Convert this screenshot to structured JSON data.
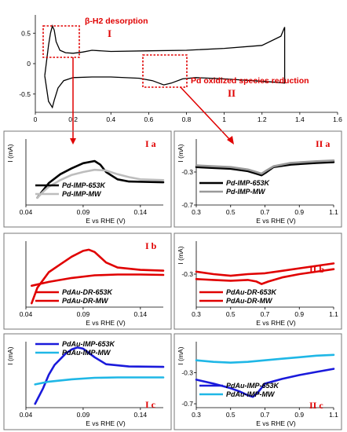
{
  "colors": {
    "accent_red": "#e00000"
  },
  "chart_data": [
    {
      "type": "line",
      "x_ticks": [
        "0",
        "0.2",
        "0.4",
        "0.6",
        "0.8",
        "1",
        "1.2",
        "1.4",
        "1.6"
      ],
      "y_ticks": [
        "-0.5",
        "0",
        "0.5"
      ],
      "xlim": [
        0,
        1.6
      ],
      "ylim": [
        -0.8,
        0.8
      ],
      "annotations": [
        {
          "text": "β-H2 desorption",
          "label": "I"
        },
        {
          "text": "Pd oxidized species reduction",
          "label": "II"
        }
      ],
      "series": [
        {
          "color": "#000000",
          "points": [
            [
              0.05,
              -0.2
            ],
            [
              0.06,
              0.05
            ],
            [
              0.07,
              0.3
            ],
            [
              0.08,
              0.5
            ],
            [
              0.09,
              0.62
            ],
            [
              0.1,
              0.55
            ],
            [
              0.11,
              0.36
            ],
            [
              0.13,
              0.22
            ],
            [
              0.16,
              0.18
            ],
            [
              0.2,
              0.17
            ],
            [
              0.25,
              0.19
            ],
            [
              0.3,
              0.22
            ],
            [
              0.4,
              0.2
            ],
            [
              0.6,
              0.21
            ],
            [
              0.8,
              0.22
            ],
            [
              1.0,
              0.25
            ],
            [
              1.2,
              0.3
            ],
            [
              1.3,
              0.45
            ],
            [
              1.32,
              0.6
            ],
            [
              1.32,
              -0.32
            ],
            [
              1.25,
              -0.3
            ],
            [
              1.0,
              -0.25
            ],
            [
              0.85,
              -0.23
            ],
            [
              0.78,
              -0.25
            ],
            [
              0.72,
              -0.32
            ],
            [
              0.68,
              -0.35
            ],
            [
              0.62,
              -0.28
            ],
            [
              0.55,
              -0.24
            ],
            [
              0.4,
              -0.22
            ],
            [
              0.3,
              -0.22
            ],
            [
              0.2,
              -0.23
            ],
            [
              0.15,
              -0.28
            ],
            [
              0.12,
              -0.4
            ],
            [
              0.1,
              -0.6
            ],
            [
              0.09,
              -0.72
            ],
            [
              0.07,
              -0.62
            ],
            [
              0.05,
              -0.2
            ]
          ]
        }
      ]
    },
    {
      "type": "line",
      "panel": "I a",
      "x_ticks": [
        "0.04",
        "0.09",
        "0.14"
      ],
      "xlabel": "E vs RHE (V)",
      "ylabel": "I (mA)",
      "xlim": [
        0.04,
        0.16
      ],
      "ylim": [
        -0.1,
        0.8
      ],
      "series": [
        {
          "name": "Pd-IMP-653K",
          "color": "#000000",
          "points": [
            [
              0.05,
              0.0
            ],
            [
              0.055,
              0.1
            ],
            [
              0.06,
              0.2
            ],
            [
              0.07,
              0.32
            ],
            [
              0.08,
              0.4
            ],
            [
              0.09,
              0.47
            ],
            [
              0.1,
              0.5
            ],
            [
              0.105,
              0.45
            ],
            [
              0.11,
              0.35
            ],
            [
              0.12,
              0.25
            ],
            [
              0.13,
              0.22
            ],
            [
              0.16,
              0.21
            ]
          ]
        },
        {
          "name": "Pd-IMP-MW",
          "color": "#bdbdbd",
          "points": [
            [
              0.05,
              0.0
            ],
            [
              0.055,
              0.08
            ],
            [
              0.06,
              0.15
            ],
            [
              0.07,
              0.24
            ],
            [
              0.08,
              0.31
            ],
            [
              0.09,
              0.35
            ],
            [
              0.1,
              0.38
            ],
            [
              0.11,
              0.37
            ],
            [
              0.12,
              0.32
            ],
            [
              0.13,
              0.28
            ],
            [
              0.14,
              0.25
            ],
            [
              0.16,
              0.24
            ]
          ]
        }
      ]
    },
    {
      "type": "line",
      "panel": "II a",
      "x_ticks": [
        "0.3",
        "0.5",
        "0.7",
        "0.9",
        "1.1"
      ],
      "y_ticks": [
        "-0.3",
        "-0.7"
      ],
      "xlabel": "E vs RHE (V)",
      "ylabel": "I (mA)",
      "xlim": [
        0.3,
        1.1
      ],
      "ylim": [
        -0.7,
        0.1
      ],
      "series": [
        {
          "name": "Pd-IMP-653K",
          "color": "#000000",
          "points": [
            [
              0.3,
              -0.24
            ],
            [
              0.4,
              -0.25
            ],
            [
              0.5,
              -0.26
            ],
            [
              0.6,
              -0.29
            ],
            [
              0.65,
              -0.32
            ],
            [
              0.68,
              -0.34
            ],
            [
              0.71,
              -0.3
            ],
            [
              0.75,
              -0.24
            ],
            [
              0.85,
              -0.21
            ],
            [
              1.0,
              -0.19
            ],
            [
              1.1,
              -0.18
            ]
          ]
        },
        {
          "name": "Pd-IMP-MW",
          "color": "#999999",
          "points": [
            [
              0.3,
              -0.22
            ],
            [
              0.4,
              -0.23
            ],
            [
              0.5,
              -0.24
            ],
            [
              0.6,
              -0.27
            ],
            [
              0.65,
              -0.3
            ],
            [
              0.68,
              -0.32
            ],
            [
              0.71,
              -0.28
            ],
            [
              0.75,
              -0.23
            ],
            [
              0.85,
              -0.19
            ],
            [
              1.0,
              -0.17
            ],
            [
              1.1,
              -0.16
            ]
          ]
        }
      ]
    },
    {
      "type": "line",
      "panel": "I b",
      "x_ticks": [
        "0.04",
        "0.09",
        "0.14"
      ],
      "xlabel": "E vs RHE (V)",
      "xlim": [
        0.04,
        0.16
      ],
      "ylim": [
        -0.6,
        1.1
      ],
      "series": [
        {
          "name": "PdAu-DR-653K",
          "color": "#e00000",
          "points": [
            [
              0.045,
              -0.5
            ],
            [
              0.05,
              -0.1
            ],
            [
              0.06,
              0.3
            ],
            [
              0.07,
              0.5
            ],
            [
              0.08,
              0.7
            ],
            [
              0.09,
              0.85
            ],
            [
              0.095,
              0.88
            ],
            [
              0.1,
              0.82
            ],
            [
              0.11,
              0.55
            ],
            [
              0.12,
              0.42
            ],
            [
              0.14,
              0.36
            ],
            [
              0.16,
              0.34
            ]
          ]
        },
        {
          "name": "PdAu-DR-MW",
          "color": "#e00000",
          "points": [
            [
              0.045,
              -0.05
            ],
            [
              0.06,
              0.05
            ],
            [
              0.08,
              0.15
            ],
            [
              0.1,
              0.22
            ],
            [
              0.12,
              0.24
            ],
            [
              0.14,
              0.24
            ],
            [
              0.16,
              0.23
            ]
          ]
        }
      ]
    },
    {
      "type": "line",
      "panel": "II b",
      "x_ticks": [
        "0.3",
        "0.5",
        "0.7",
        "0.9",
        "1.1"
      ],
      "y_ticks": [
        "-0.3"
      ],
      "xlabel": "E vs RHE (V)",
      "ylabel": "I (mA)",
      "xlim": [
        0.3,
        1.1
      ],
      "ylim": [
        -0.7,
        0.1
      ],
      "series": [
        {
          "name": "PdAu-DR-653K",
          "color": "#e00000",
          "points": [
            [
              0.3,
              -0.36
            ],
            [
              0.4,
              -0.37
            ],
            [
              0.5,
              -0.38
            ],
            [
              0.6,
              -0.37
            ],
            [
              0.65,
              -0.39
            ],
            [
              0.68,
              -0.42
            ],
            [
              0.72,
              -0.39
            ],
            [
              0.8,
              -0.34
            ],
            [
              0.9,
              -0.3
            ],
            [
              1.0,
              -0.27
            ],
            [
              1.1,
              -0.24
            ]
          ]
        },
        {
          "name": "PdAu-DR-MW",
          "color": "#e00000",
          "points": [
            [
              0.3,
              -0.27
            ],
            [
              0.4,
              -0.3
            ],
            [
              0.5,
              -0.32
            ],
            [
              0.6,
              -0.3
            ],
            [
              0.7,
              -0.29
            ],
            [
              0.8,
              -0.26
            ],
            [
              0.9,
              -0.23
            ],
            [
              1.0,
              -0.2
            ],
            [
              1.1,
              -0.17
            ]
          ]
        }
      ]
    },
    {
      "type": "line",
      "panel": "I c",
      "x_ticks": [
        "0.04",
        "0.09",
        "0.14"
      ],
      "xlabel": "E vs RHE (V)",
      "ylabel": "I (mA)",
      "xlim": [
        0.04,
        0.16
      ],
      "ylim": [
        -0.6,
        1.1
      ],
      "series": [
        {
          "name": "PdAu-IMP-653K",
          "color": "#1a1adb",
          "points": [
            [
              0.048,
              -0.5
            ],
            [
              0.055,
              -0.1
            ],
            [
              0.06,
              0.25
            ],
            [
              0.065,
              0.5
            ],
            [
              0.075,
              0.8
            ],
            [
              0.08,
              0.9
            ],
            [
              0.085,
              0.95
            ],
            [
              0.09,
              0.92
            ],
            [
              0.1,
              0.7
            ],
            [
              0.11,
              0.52
            ],
            [
              0.13,
              0.46
            ],
            [
              0.16,
              0.45
            ]
          ]
        },
        {
          "name": "PdAu-IMP-MW",
          "color": "#1fb7e6",
          "points": [
            [
              0.048,
              0.0
            ],
            [
              0.06,
              0.07
            ],
            [
              0.08,
              0.13
            ],
            [
              0.1,
              0.17
            ],
            [
              0.12,
              0.18
            ],
            [
              0.14,
              0.18
            ],
            [
              0.16,
              0.18
            ]
          ]
        }
      ]
    },
    {
      "type": "line",
      "panel": "II c",
      "x_ticks": [
        "0.3",
        "0.5",
        "0.7",
        "0.9",
        "1.1"
      ],
      "y_ticks": [
        "-0.3",
        "-0.7"
      ],
      "xlabel": "E vs RHE (V)",
      "ylabel": "I (mA)",
      "xlim": [
        0.3,
        1.1
      ],
      "ylim": [
        -0.75,
        0.1
      ],
      "series": [
        {
          "name": "PdAu-IMP-653K",
          "color": "#1a1adb",
          "points": [
            [
              0.3,
              -0.39
            ],
            [
              0.4,
              -0.44
            ],
            [
              0.5,
              -0.5
            ],
            [
              0.55,
              -0.54
            ],
            [
              0.6,
              -0.59
            ],
            [
              0.63,
              -0.61
            ],
            [
              0.66,
              -0.55
            ],
            [
              0.7,
              -0.44
            ],
            [
              0.8,
              -0.38
            ],
            [
              0.9,
              -0.33
            ],
            [
              1.0,
              -0.29
            ],
            [
              1.1,
              -0.25
            ]
          ]
        },
        {
          "name": "PdAu-IMP-MW",
          "color": "#1fb7e6",
          "points": [
            [
              0.3,
              -0.14
            ],
            [
              0.4,
              -0.16
            ],
            [
              0.5,
              -0.17
            ],
            [
              0.6,
              -0.16
            ],
            [
              0.7,
              -0.14
            ],
            [
              0.8,
              -0.12
            ],
            [
              0.9,
              -0.1
            ],
            [
              1.0,
              -0.08
            ],
            [
              1.1,
              -0.07
            ]
          ]
        }
      ]
    }
  ],
  "panel_labels": {
    "ia": "I a",
    "iia": "II a",
    "ib": "I b",
    "iib": "II b",
    "ic": "I c",
    "iic": "II c"
  }
}
